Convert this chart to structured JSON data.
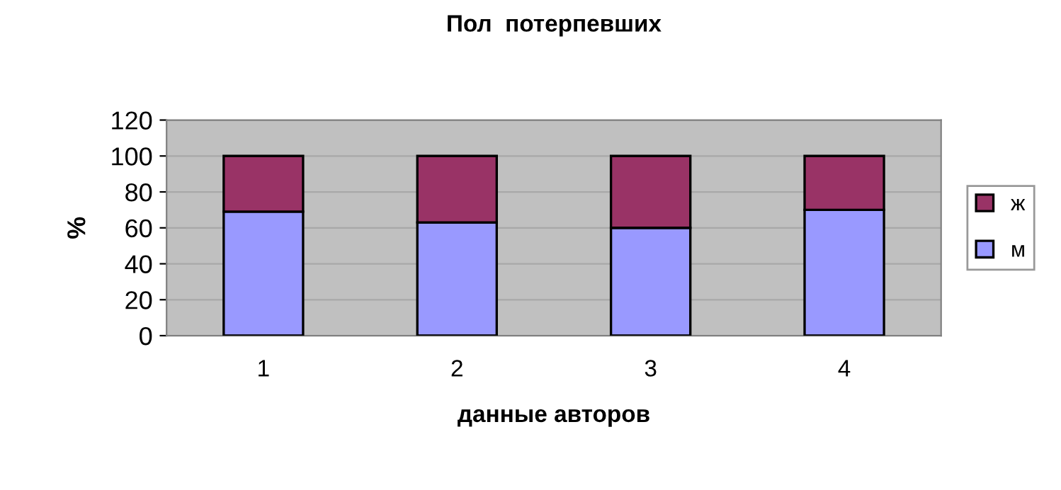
{
  "chart_data": {
    "type": "bar",
    "title": "Пол  потерпевших",
    "xlabel": "данные авторов",
    "ylabel": "%",
    "categories": [
      "1",
      "2",
      "3",
      "4"
    ],
    "stacked": true,
    "series": [
      {
        "name": "м",
        "color": "#9999ff",
        "values": [
          69,
          63,
          60,
          70
        ]
      },
      {
        "name": "ж",
        "color": "#993366",
        "values": [
          31,
          37,
          40,
          30
        ]
      }
    ],
    "ylim": [
      0,
      120
    ],
    "yticks": [
      0,
      20,
      40,
      60,
      80,
      100,
      120
    ],
    "grid": "y",
    "legend": "right"
  }
}
